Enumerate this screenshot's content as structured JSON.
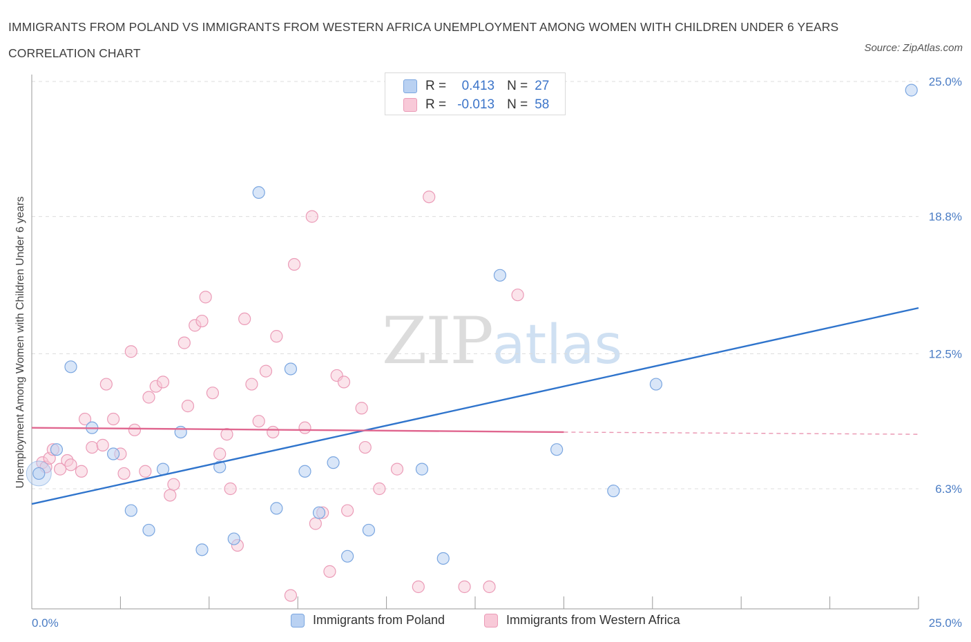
{
  "header": {
    "title": "IMMIGRANTS FROM POLAND VS IMMIGRANTS FROM WESTERN AFRICA UNEMPLOYMENT AMONG WOMEN WITH CHILDREN UNDER 6 YEARS CORRELATION CHART",
    "source": "Source: ZipAtlas.com"
  },
  "watermark": {
    "zip": "ZIP",
    "atlas": "atlas"
  },
  "stats": {
    "poland": {
      "r_label": "R =",
      "r_value": "0.413",
      "n_label": "N =",
      "n_value": "27"
    },
    "wafrica": {
      "r_label": "R =",
      "r_value": "-0.013",
      "n_label": "N =",
      "n_value": "58"
    }
  },
  "colors": {
    "poland_fill": "#b9d1f2",
    "poland_stroke": "#7aa6e0",
    "poland_line": "#2f74cc",
    "wafrica_fill": "#f8c9d8",
    "wafrica_stroke": "#eb9bb7",
    "wafrica_line": "#e0668f"
  },
  "chart_data": {
    "type": "scatter",
    "title": "IMMIGRANTS FROM POLAND VS IMMIGRANTS FROM WESTERN AFRICA UNEMPLOYMENT AMONG WOMEN WITH CHILDREN UNDER 6 YEARS CORRELATION CHART",
    "ylabel": "Unemployment Among Women with Children Under 6 years",
    "xlim": [
      0,
      25
    ],
    "ylim": [
      0,
      25
    ],
    "x_tick_labels": [
      {
        "value": 0,
        "label": "0.0%"
      },
      {
        "value": 25,
        "label": "25.0%"
      }
    ],
    "y_tick_labels": [
      {
        "value": 6.3,
        "label": "6.3%"
      },
      {
        "value": 12.5,
        "label": "12.5%"
      },
      {
        "value": 18.8,
        "label": "18.8%"
      },
      {
        "value": 25.0,
        "label": "25.0%"
      }
    ],
    "grid": "horizontal dashed",
    "legend": "bottom",
    "series": [
      {
        "name": "Immigrants from Poland",
        "trend": {
          "x": [
            0,
            25
          ],
          "y": [
            5.6,
            14.6
          ]
        },
        "points": [
          [
            0.2,
            7.0
          ],
          [
            0.7,
            8.1
          ],
          [
            1.1,
            11.9
          ],
          [
            1.7,
            9.1
          ],
          [
            2.3,
            7.9
          ],
          [
            2.8,
            5.3
          ],
          [
            3.3,
            4.4
          ],
          [
            3.7,
            7.2
          ],
          [
            4.2,
            8.9
          ],
          [
            4.8,
            3.5
          ],
          [
            5.3,
            7.3
          ],
          [
            5.7,
            4.0
          ],
          [
            6.4,
            19.9
          ],
          [
            6.9,
            5.4
          ],
          [
            7.3,
            11.8
          ],
          [
            7.7,
            7.1
          ],
          [
            8.1,
            5.2
          ],
          [
            8.5,
            7.5
          ],
          [
            8.9,
            3.2
          ],
          [
            9.5,
            4.4
          ],
          [
            11.0,
            7.2
          ],
          [
            11.6,
            3.1
          ],
          [
            13.2,
            16.1
          ],
          [
            14.8,
            8.1
          ],
          [
            16.4,
            6.2
          ],
          [
            17.6,
            11.1
          ],
          [
            24.8,
            24.6
          ]
        ]
      },
      {
        "name": "Immigrants from Western Africa",
        "trend": {
          "x": [
            0,
            15
          ],
          "y": [
            9.1,
            8.9
          ],
          "dashed_extension": {
            "x": [
              15,
              25
            ],
            "y": [
              8.9,
              8.8
            ]
          }
        },
        "points": [
          [
            0.3,
            7.5
          ],
          [
            0.4,
            7.3
          ],
          [
            0.5,
            7.7
          ],
          [
            0.6,
            8.1
          ],
          [
            0.8,
            7.2
          ],
          [
            1.0,
            7.6
          ],
          [
            1.1,
            7.4
          ],
          [
            1.4,
            7.1
          ],
          [
            1.5,
            9.5
          ],
          [
            1.7,
            8.2
          ],
          [
            2.0,
            8.3
          ],
          [
            2.1,
            11.1
          ],
          [
            2.3,
            9.5
          ],
          [
            2.5,
            7.9
          ],
          [
            2.6,
            7.0
          ],
          [
            2.8,
            12.6
          ],
          [
            2.9,
            9.0
          ],
          [
            3.2,
            7.1
          ],
          [
            3.3,
            10.5
          ],
          [
            3.5,
            11.0
          ],
          [
            3.7,
            11.2
          ],
          [
            3.9,
            6.0
          ],
          [
            4.0,
            6.5
          ],
          [
            4.3,
            13.0
          ],
          [
            4.4,
            10.1
          ],
          [
            4.6,
            13.8
          ],
          [
            4.8,
            14.0
          ],
          [
            4.9,
            15.1
          ],
          [
            5.1,
            10.7
          ],
          [
            5.3,
            7.9
          ],
          [
            5.5,
            8.8
          ],
          [
            5.6,
            6.3
          ],
          [
            5.8,
            3.7
          ],
          [
            6.0,
            14.1
          ],
          [
            6.2,
            11.1
          ],
          [
            6.4,
            9.4
          ],
          [
            6.6,
            11.7
          ],
          [
            6.8,
            8.9
          ],
          [
            6.9,
            13.3
          ],
          [
            7.3,
            1.4
          ],
          [
            7.4,
            16.6
          ],
          [
            7.7,
            9.1
          ],
          [
            7.9,
            18.8
          ],
          [
            8.0,
            4.7
          ],
          [
            8.2,
            5.2
          ],
          [
            8.4,
            2.5
          ],
          [
            8.6,
            11.5
          ],
          [
            8.8,
            11.2
          ],
          [
            8.9,
            5.3
          ],
          [
            9.3,
            10.0
          ],
          [
            9.4,
            8.2
          ],
          [
            9.8,
            6.3
          ],
          [
            10.3,
            7.2
          ],
          [
            10.9,
            1.8
          ],
          [
            11.2,
            19.7
          ],
          [
            12.2,
            1.8
          ],
          [
            12.9,
            1.8
          ],
          [
            13.7,
            15.2
          ]
        ]
      }
    ]
  }
}
